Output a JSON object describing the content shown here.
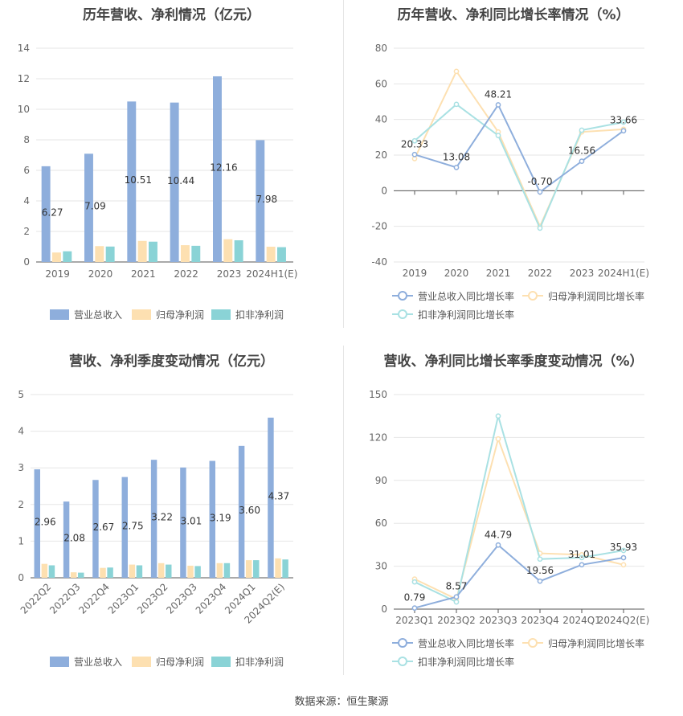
{
  "colors": {
    "revenue_bar": "#8eaedc",
    "parent_profit_bar": "#fde0b1",
    "nonrecurring_bar": "#8ad3d6",
    "revenue_line": "#8eaedc",
    "parent_profit_line": "#fde0b1",
    "nonrecurring_line": "#a9e1e3",
    "grid": "#e6e6e6",
    "axis_text": "#666666"
  },
  "source": "数据来源：恒生聚源",
  "chart_data": [
    {
      "id": "annual-bars",
      "type": "bar",
      "title": "历年营收、净利情况（亿元）",
      "categories": [
        "2019",
        "2020",
        "2021",
        "2022",
        "2023",
        "2024H1(E)"
      ],
      "ylim": [
        0,
        14
      ],
      "yticks": [
        "0",
        "2",
        "4",
        "6",
        "8",
        "10",
        "12",
        "14"
      ],
      "series": [
        {
          "name": "营业总收入",
          "values": [
            6.27,
            7.09,
            10.51,
            10.44,
            12.16,
            7.98
          ],
          "labels": [
            "6.27",
            "7.09",
            "10.51",
            "10.44",
            "12.16",
            "7.98"
          ]
        },
        {
          "name": "归母净利润",
          "values": [
            0.62,
            1.04,
            1.38,
            1.1,
            1.49,
            1.0
          ]
        },
        {
          "name": "扣非净利润",
          "values": [
            0.7,
            1.01,
            1.33,
            1.06,
            1.42,
            0.97
          ]
        }
      ]
    },
    {
      "id": "annual-lines",
      "type": "line",
      "title": "历年营收、净利同比增长率情况（%）",
      "categories": [
        "2019",
        "2020",
        "2021",
        "2022",
        "2023",
        "2024H1(E)"
      ],
      "ylim": [
        -40,
        80
      ],
      "yticks": [
        "-40",
        "-20",
        "0",
        "20",
        "40",
        "60",
        "80"
      ],
      "series": [
        {
          "name": "营业总收入同比增长率",
          "values": [
            20.33,
            13.08,
            48.21,
            -0.7,
            16.56,
            33.66
          ],
          "labels": [
            "20.33",
            "13.08",
            "48.21",
            "-0.70",
            "16.56",
            "33.66"
          ]
        },
        {
          "name": "归母净利润同比增长率",
          "values": [
            18,
            67,
            33,
            -20,
            33,
            34.5
          ]
        },
        {
          "name": "扣非净利润同比增长率",
          "values": [
            28,
            48.5,
            31,
            -21,
            34,
            38.5
          ]
        }
      ]
    },
    {
      "id": "quarterly-bars",
      "type": "bar",
      "title": "营收、净利季度变动情况（亿元）",
      "categories": [
        "2022Q2",
        "2022Q3",
        "2022Q4",
        "2023Q1",
        "2023Q2",
        "2023Q3",
        "2023Q4",
        "2024Q1",
        "2024Q2(E)"
      ],
      "ylim": [
        0,
        5
      ],
      "yticks": [
        "0",
        "1",
        "2",
        "3",
        "4",
        "5"
      ],
      "series": [
        {
          "name": "营业总收入",
          "values": [
            2.96,
            2.08,
            2.67,
            2.75,
            3.22,
            3.01,
            3.19,
            3.6,
            4.37
          ],
          "labels": [
            "2.96",
            "2.08",
            "2.67",
            "2.75",
            "3.22",
            "3.01",
            "3.19",
            "3.60",
            "4.37"
          ]
        },
        {
          "name": "归母净利润",
          "values": [
            0.38,
            0.15,
            0.27,
            0.36,
            0.4,
            0.33,
            0.4,
            0.48,
            0.53
          ]
        },
        {
          "name": "扣非净利润",
          "values": [
            0.34,
            0.14,
            0.28,
            0.34,
            0.36,
            0.32,
            0.4,
            0.48,
            0.5
          ]
        }
      ]
    },
    {
      "id": "quarterly-lines",
      "type": "line",
      "title": "营收、净利同比增长率季度变动情况（%）",
      "categories": [
        "2023Q1",
        "2023Q2",
        "2023Q3",
        "2023Q4",
        "2024Q1",
        "2024Q2(E)"
      ],
      "ylim": [
        0,
        150
      ],
      "yticks": [
        "0",
        "30",
        "60",
        "90",
        "120",
        "150"
      ],
      "series": [
        {
          "name": "营业总收入同比增长率",
          "values": [
            0.79,
            8.57,
            44.79,
            19.56,
            31.01,
            35.93
          ],
          "labels": [
            "0.79",
            "8.57",
            "44.79",
            "19.56",
            "31.01",
            "35.93"
          ]
        },
        {
          "name": "归母净利润同比增长率",
          "values": [
            21,
            7,
            119,
            39,
            38,
            31
          ]
        },
        {
          "name": "扣非净利润同比增长率",
          "values": [
            19,
            5,
            135,
            35,
            36,
            41
          ]
        }
      ]
    }
  ]
}
